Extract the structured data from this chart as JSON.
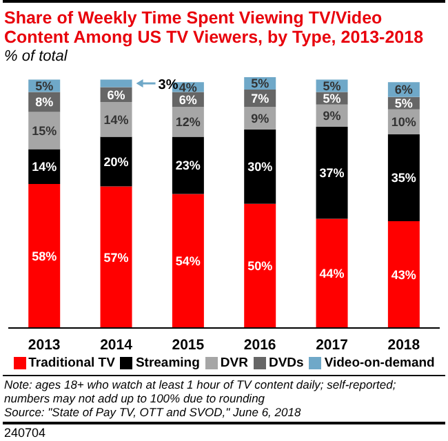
{
  "chart_data": {
    "type": "bar",
    "stacked": true,
    "title": "Share of Weekly Time Spent Viewing TV/Video Content Among US TV Viewers, by Type, 2013-2018",
    "subtitle": "% of total",
    "categories": [
      "2013",
      "2014",
      "2015",
      "2016",
      "2017",
      "2018"
    ],
    "legend": "bottom",
    "series": [
      {
        "name": "Traditional TV",
        "color": "#ff0000",
        "values": [
          58,
          57,
          54,
          50,
          44,
          43
        ],
        "value_labels": [
          "58%",
          "57%",
          "54%",
          "50%",
          "44%",
          "43%"
        ]
      },
      {
        "name": "Streaming",
        "color": "#000000",
        "values": [
          14,
          20,
          23,
          30,
          37,
          35
        ],
        "value_labels": [
          "14%",
          "20%",
          "23%",
          "30%",
          "37%",
          "35%"
        ]
      },
      {
        "name": "DVR",
        "color": "#a6a6a6",
        "values": [
          15,
          14,
          12,
          9,
          9,
          10
        ],
        "value_labels": [
          "15%",
          "14%",
          "12%",
          "9%",
          "9%",
          "10%"
        ]
      },
      {
        "name": "DVDs",
        "color": "#666666",
        "values": [
          8,
          6,
          6,
          7,
          5,
          5
        ],
        "value_labels": [
          "8%",
          "6%",
          "6%",
          "7%",
          "5%",
          "5%"
        ]
      },
      {
        "name": "Video-on-demand",
        "color": "#6fa8c8",
        "values": [
          5,
          3,
          4,
          5,
          5,
          6
        ],
        "value_labels": [
          "5%",
          "3%",
          "4%",
          "5%",
          "5%",
          "6%"
        ]
      }
    ],
    "annotations": [
      "Note: ages 18+ who watch at least 1 hour of TV content daily; self-reported; numbers may not add up to 100% due to rounding",
      "Source: \"State of Pay TV, OTT and SVOD,\" June 6, 2018",
      "240704"
    ]
  }
}
